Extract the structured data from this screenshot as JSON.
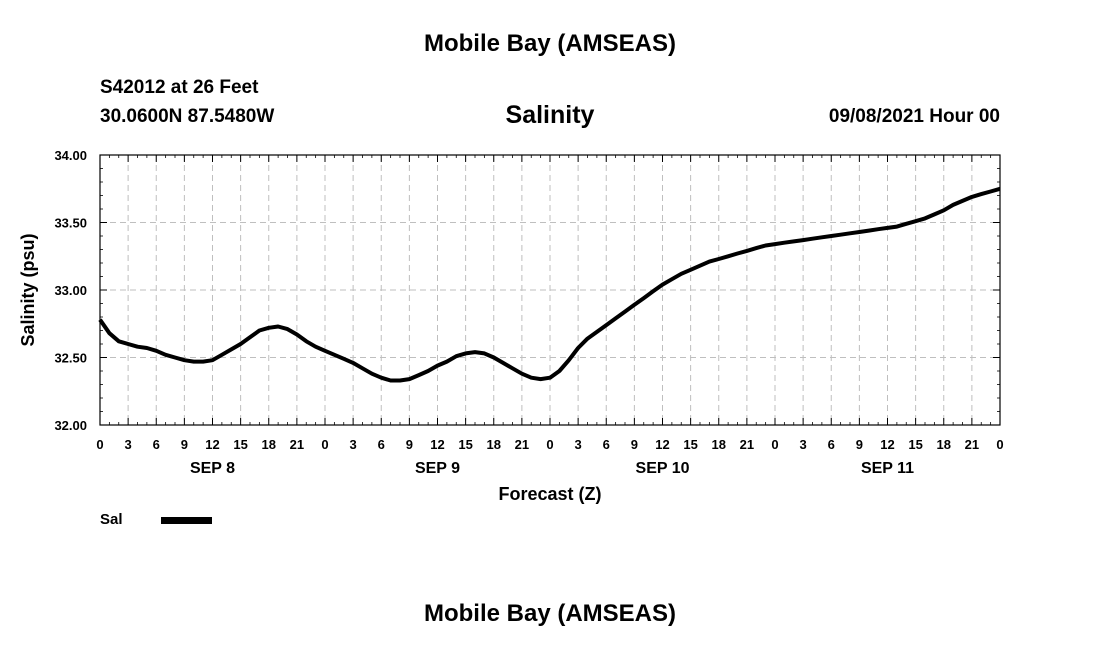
{
  "header": {
    "title": "Mobile Bay (AMSEAS)",
    "station": "S42012 at 26 Feet",
    "coords": "30.0600N  87.5480W",
    "datetime": "09/08/2021 Hour 00",
    "footer_title": "Mobile Bay (AMSEAS)"
  },
  "legend": {
    "label": "Sal",
    "color": "#000000"
  },
  "chart_data": {
    "type": "line",
    "title": "Salinity",
    "xlabel": "Forecast (Z)",
    "ylabel": "Salinity (psu)",
    "ylim": [
      32.0,
      34.0
    ],
    "yticks": [
      "32.00",
      "32.50",
      "33.00",
      "33.50",
      "34.00"
    ],
    "xlim": [
      0,
      96
    ],
    "x_tick_hours": [
      0,
      3,
      6,
      9,
      12,
      15,
      18,
      21,
      24,
      27,
      30,
      33,
      36,
      39,
      42,
      45,
      48,
      51,
      54,
      57,
      60,
      63,
      66,
      69,
      72,
      75,
      78,
      81,
      84,
      87,
      90,
      93,
      96
    ],
    "x_tick_labels": [
      "0",
      "3",
      "6",
      "9",
      "12",
      "15",
      "18",
      "21",
      "0",
      "3",
      "6",
      "9",
      "12",
      "15",
      "18",
      "21",
      "0",
      "3",
      "6",
      "9",
      "12",
      "15",
      "18",
      "21",
      "0",
      "3",
      "6",
      "9",
      "12",
      "15",
      "18",
      "21",
      "0"
    ],
    "day_labels": [
      {
        "label": "SEP 8",
        "hour": 12
      },
      {
        "label": "SEP 9",
        "hour": 36
      },
      {
        "label": "SEP 10",
        "hour": 60
      },
      {
        "label": "SEP 11",
        "hour": 84
      }
    ],
    "grid": true,
    "series": [
      {
        "name": "Sal",
        "x": [
          0,
          1,
          2,
          3,
          4,
          5,
          6,
          7,
          8,
          9,
          10,
          11,
          12,
          13,
          14,
          15,
          16,
          17,
          18,
          19,
          20,
          21,
          22,
          23,
          24,
          25,
          26,
          27,
          28,
          29,
          30,
          31,
          32,
          33,
          34,
          35,
          36,
          37,
          38,
          39,
          40,
          41,
          42,
          43,
          44,
          45,
          46,
          47,
          48,
          49,
          50,
          51,
          52,
          53,
          54,
          55,
          56,
          57,
          58,
          59,
          60,
          61,
          62,
          63,
          64,
          65,
          66,
          67,
          68,
          69,
          70,
          71,
          72,
          73,
          74,
          75,
          76,
          77,
          78,
          79,
          80,
          81,
          82,
          83,
          84,
          85,
          86,
          87,
          88,
          89,
          90,
          91,
          92,
          93,
          94,
          95,
          96
        ],
        "values": [
          32.78,
          32.68,
          32.62,
          32.6,
          32.58,
          32.57,
          32.55,
          32.52,
          32.5,
          32.48,
          32.47,
          32.47,
          32.48,
          32.52,
          32.56,
          32.6,
          32.65,
          32.7,
          32.72,
          32.73,
          32.71,
          32.67,
          32.62,
          32.58,
          32.55,
          32.52,
          32.49,
          32.46,
          32.42,
          32.38,
          32.35,
          32.33,
          32.33,
          32.34,
          32.37,
          32.4,
          32.44,
          32.47,
          32.51,
          32.53,
          32.54,
          32.53,
          32.5,
          32.46,
          32.42,
          32.38,
          32.35,
          32.34,
          32.35,
          32.4,
          32.48,
          32.57,
          32.64,
          32.69,
          32.74,
          32.79,
          32.84,
          32.89,
          32.94,
          32.99,
          33.04,
          33.08,
          33.12,
          33.15,
          33.18,
          33.21,
          33.23,
          33.25,
          33.27,
          33.29,
          33.31,
          33.33,
          33.34,
          33.35,
          33.36,
          33.37,
          33.38,
          33.39,
          33.4,
          33.41,
          33.42,
          33.43,
          33.44,
          33.45,
          33.46,
          33.47,
          33.49,
          33.51,
          33.53,
          33.56,
          33.59,
          33.63,
          33.66,
          33.69,
          33.71,
          33.73,
          33.75
        ]
      }
    ]
  }
}
